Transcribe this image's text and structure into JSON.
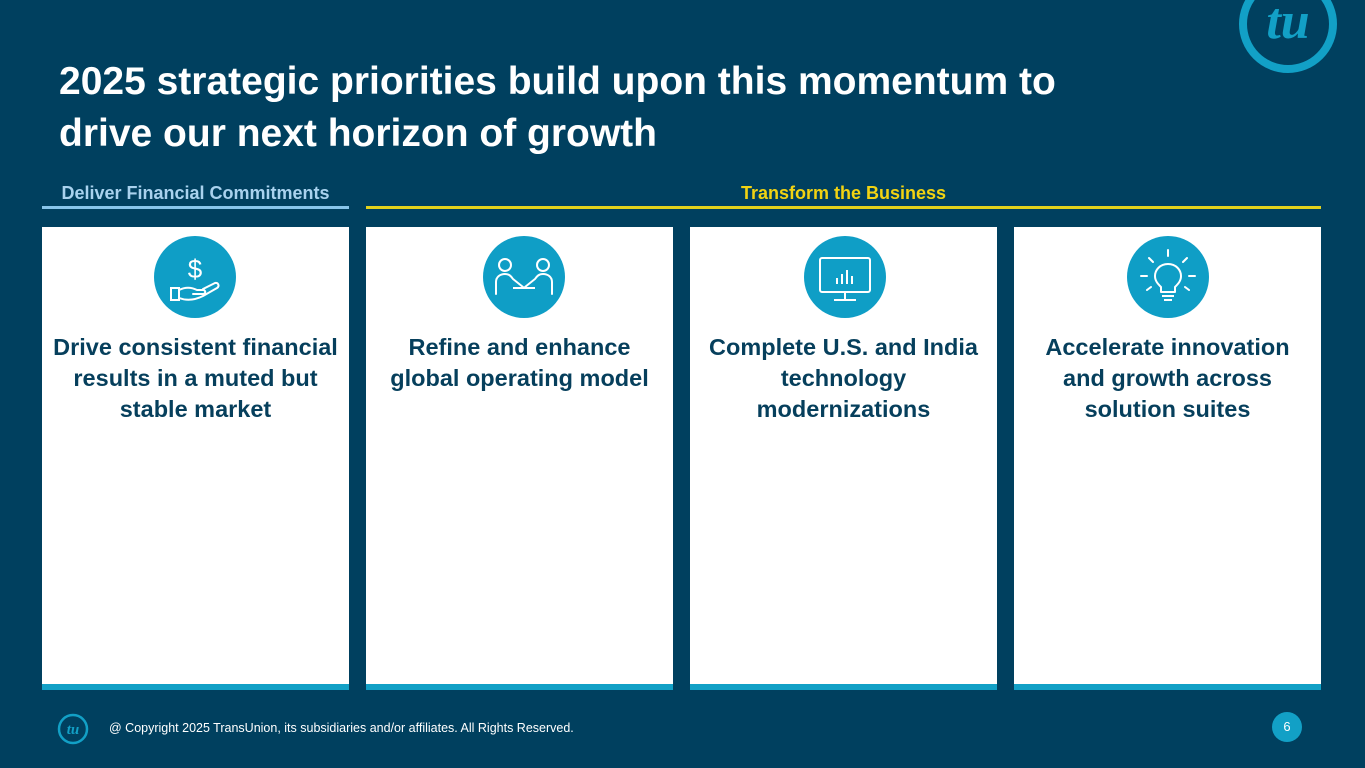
{
  "slide": {
    "title_line1": "2025 strategic priorities build upon this momentum to",
    "title_line2": "drive our next horizon of growth",
    "logo_text": "tu"
  },
  "sections": [
    {
      "label": "Deliver Financial Commitments",
      "color": "#a9d2ee"
    },
    {
      "label": "Transform the Business",
      "color": "#f2d312"
    }
  ],
  "cards": [
    {
      "icon": "dollar-hand-icon",
      "text": "Drive consistent financial results in a muted but stable market"
    },
    {
      "icon": "handshake-icon",
      "text": "Refine and enhance global operating model"
    },
    {
      "icon": "monitor-chart-icon",
      "text": "Complete U.S. and India technology modernizations"
    },
    {
      "icon": "lightbulb-icon",
      "text": "Accelerate innovation and growth across solution suites"
    }
  ],
  "footer": {
    "copyright": "@ Copyright 2025 TransUnion, its subsidiaries and/or affiliates.  All Rights Reserved.",
    "page_number": "6"
  },
  "colors": {
    "background": "#00405f",
    "accent": "#12a0c6",
    "card_text": "#063f5c"
  }
}
